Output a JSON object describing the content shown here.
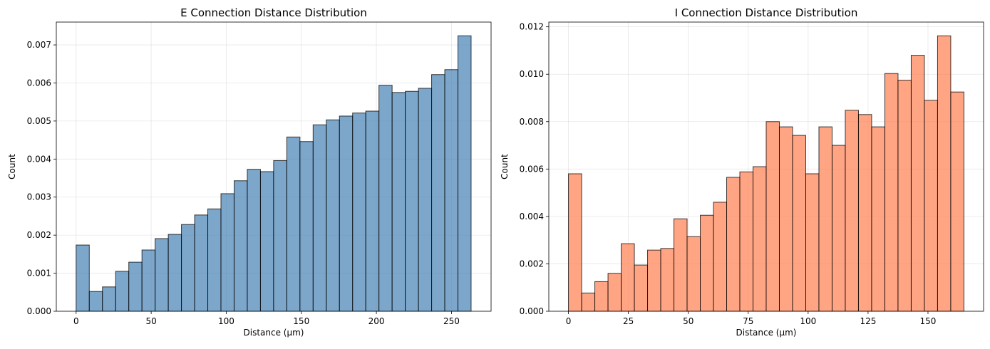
{
  "chart_data": [
    {
      "type": "bar",
      "title": "E Connection Distance Distribution",
      "xlabel": "Distance (µm)",
      "ylabel": "Count",
      "xlim": [
        -13.2,
        276.4
      ],
      "ylim": [
        0,
        0.0076
      ],
      "xticks": [
        0,
        50,
        100,
        150,
        200,
        250
      ],
      "yticks": [
        0.0,
        0.001,
        0.002,
        0.003,
        0.004,
        0.005,
        0.006,
        0.007
      ],
      "ytick_labels": [
        "0.000",
        "0.001",
        "0.002",
        "0.003",
        "0.004",
        "0.005",
        "0.006",
        "0.007"
      ],
      "grid": true,
      "color": "#4682b4",
      "edge_color": "#000000",
      "bin_start": 0,
      "bin_width": 8.77,
      "values": [
        0.00174,
        0.00052,
        0.00064,
        0.00105,
        0.00129,
        0.00161,
        0.00191,
        0.00202,
        0.00228,
        0.00253,
        0.00269,
        0.00309,
        0.00343,
        0.00373,
        0.00367,
        0.00396,
        0.00458,
        0.00446,
        0.0049,
        0.00503,
        0.00513,
        0.00521,
        0.00526,
        0.00594,
        0.00575,
        0.00578,
        0.00586,
        0.00622,
        0.00635,
        0.00724
      ]
    },
    {
      "type": "bar",
      "title": "I Connection Distance Distribution",
      "xlabel": "Distance (µm)",
      "ylabel": "Count",
      "xlim": [
        -8.2,
        173.2
      ],
      "ylim": [
        0,
        0.0122
      ],
      "xticks": [
        0,
        25,
        50,
        75,
        100,
        125,
        150
      ],
      "yticks": [
        0.0,
        0.002,
        0.004,
        0.006,
        0.008,
        0.01,
        0.012
      ],
      "ytick_labels": [
        "0.000",
        "0.002",
        "0.004",
        "0.006",
        "0.008",
        "0.010",
        "0.012"
      ],
      "grid": true,
      "color": "#ff7f50",
      "edge_color": "#000000",
      "bin_start": 0,
      "bin_width": 5.5,
      "values": [
        0.0058,
        0.00077,
        0.00125,
        0.0016,
        0.00285,
        0.00195,
        0.00258,
        0.00265,
        0.0039,
        0.00315,
        0.00405,
        0.0046,
        0.00565,
        0.00588,
        0.0061,
        0.008,
        0.00778,
        0.00742,
        0.0058,
        0.00778,
        0.007,
        0.00848,
        0.0083,
        0.00778,
        0.01003,
        0.00975,
        0.0108,
        0.0089,
        0.01162,
        0.00925
      ]
    }
  ]
}
